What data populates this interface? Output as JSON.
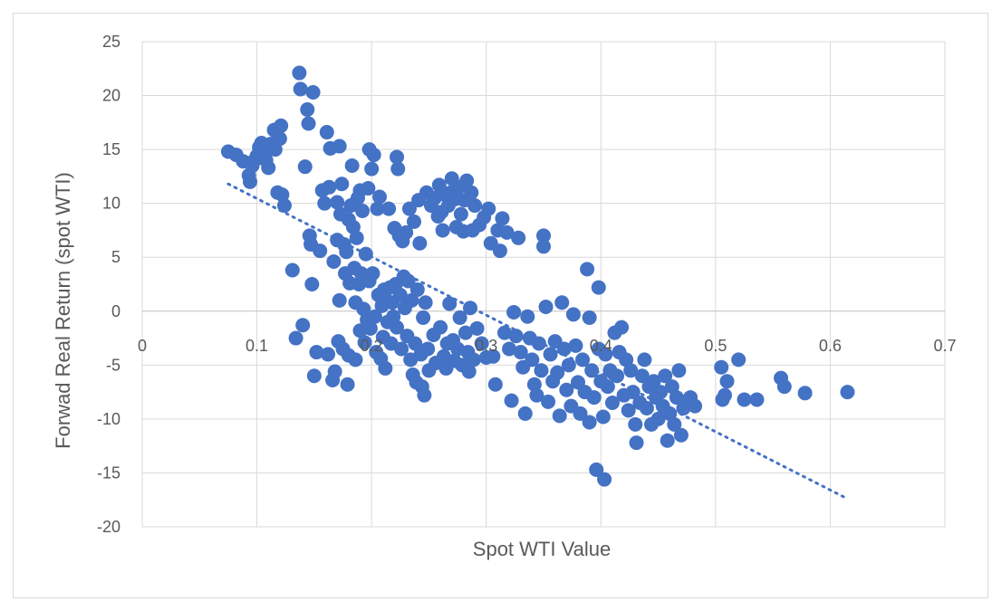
{
  "chart_data": {
    "type": "scatter",
    "title": "",
    "xlabel": "Spot WTI Value",
    "ylabel": "Forwad Real Return (spot WTI)",
    "xlim": [
      0,
      0.7
    ],
    "ylim": [
      -20,
      25
    ],
    "x_ticks": [
      "0",
      "0.1",
      "0.2",
      "0.3",
      "0.4",
      "0.5",
      "0.6",
      "0.7"
    ],
    "y_ticks": [
      "25",
      "20",
      "15",
      "10",
      "5",
      "0",
      "-5",
      "-10",
      "-15",
      "-20"
    ],
    "grid": true,
    "legend": "none",
    "marker_color": "#4472C4",
    "trendline": {
      "type": "linear",
      "style": "dotted",
      "color": "#4472C4",
      "x": [
        0.075,
        0.615
      ],
      "y": [
        11.8,
        -17.4
      ]
    },
    "points": [
      [
        0.075,
        14.8
      ],
      [
        0.082,
        14.5
      ],
      [
        0.088,
        13.9
      ],
      [
        0.093,
        12.6
      ],
      [
        0.094,
        12.0
      ],
      [
        0.096,
        13.5
      ],
      [
        0.098,
        14.0
      ],
      [
        0.1,
        14.4
      ],
      [
        0.102,
        15.2
      ],
      [
        0.104,
        15.6
      ],
      [
        0.106,
        14.9
      ],
      [
        0.108,
        14.0
      ],
      [
        0.11,
        13.3
      ],
      [
        0.112,
        15.5
      ],
      [
        0.115,
        16.8
      ],
      [
        0.116,
        15.0
      ],
      [
        0.118,
        11.0
      ],
      [
        0.12,
        16.0
      ],
      [
        0.121,
        17.2
      ],
      [
        0.122,
        10.8
      ],
      [
        0.124,
        9.8
      ],
      [
        0.131,
        3.8
      ],
      [
        0.134,
        -2.5
      ],
      [
        0.137,
        22.1
      ],
      [
        0.138,
        20.6
      ],
      [
        0.14,
        -1.3
      ],
      [
        0.142,
        13.4
      ],
      [
        0.144,
        18.7
      ],
      [
        0.145,
        17.4
      ],
      [
        0.146,
        7.0
      ],
      [
        0.147,
        6.2
      ],
      [
        0.148,
        2.5
      ],
      [
        0.149,
        20.3
      ],
      [
        0.15,
        -6.0
      ],
      [
        0.152,
        -3.8
      ],
      [
        0.155,
        5.6
      ],
      [
        0.157,
        11.2
      ],
      [
        0.159,
        10.0
      ],
      [
        0.161,
        16.6
      ],
      [
        0.162,
        -4.0
      ],
      [
        0.163,
        11.5
      ],
      [
        0.164,
        15.1
      ],
      [
        0.166,
        -6.4
      ],
      [
        0.167,
        4.6
      ],
      [
        0.168,
        -5.6
      ],
      [
        0.17,
        10.1
      ],
      [
        0.17,
        6.6
      ],
      [
        0.171,
        -2.8
      ],
      [
        0.172,
        15.3
      ],
      [
        0.172,
        1.0
      ],
      [
        0.173,
        9.0
      ],
      [
        0.174,
        11.8
      ],
      [
        0.175,
        -3.5
      ],
      [
        0.176,
        6.2
      ],
      [
        0.177,
        3.5
      ],
      [
        0.178,
        5.5
      ],
      [
        0.179,
        -6.8
      ],
      [
        0.18,
        8.5
      ],
      [
        0.18,
        -4.1
      ],
      [
        0.181,
        2.6
      ],
      [
        0.182,
        9.8
      ],
      [
        0.183,
        13.5
      ],
      [
        0.184,
        7.8
      ],
      [
        0.185,
        4.0
      ],
      [
        0.186,
        0.8
      ],
      [
        0.186,
        -4.5
      ],
      [
        0.187,
        6.8
      ],
      [
        0.188,
        10.5
      ],
      [
        0.189,
        2.5
      ],
      [
        0.19,
        11.2
      ],
      [
        0.19,
        -1.8
      ],
      [
        0.191,
        3.5
      ],
      [
        0.192,
        9.3
      ],
      [
        0.193,
        0.2
      ],
      [
        0.194,
        -2.9
      ],
      [
        0.195,
        5.3
      ],
      [
        0.196,
        -0.8
      ],
      [
        0.197,
        11.4
      ],
      [
        0.198,
        15.0
      ],
      [
        0.198,
        2.8
      ],
      [
        0.199,
        -1.6
      ],
      [
        0.2,
        13.2
      ],
      [
        0.201,
        3.5
      ],
      [
        0.202,
        14.5
      ],
      [
        0.203,
        -0.5
      ],
      [
        0.204,
        -3.8
      ],
      [
        0.205,
        9.5
      ],
      [
        0.206,
        1.5
      ],
      [
        0.207,
        10.6
      ],
      [
        0.208,
        -4.4
      ],
      [
        0.209,
        0.5
      ],
      [
        0.21,
        -2.4
      ],
      [
        0.211,
        2.0
      ],
      [
        0.212,
        -5.3
      ],
      [
        0.213,
        1.0
      ],
      [
        0.214,
        -1.0
      ],
      [
        0.215,
        9.5
      ],
      [
        0.216,
        2.2
      ],
      [
        0.217,
        -3.0
      ],
      [
        0.218,
        0.8
      ],
      [
        0.219,
        -0.5
      ],
      [
        0.22,
        7.7
      ],
      [
        0.221,
        2.5
      ],
      [
        0.222,
        14.3
      ],
      [
        0.222,
        -1.5
      ],
      [
        0.223,
        13.2
      ],
      [
        0.224,
        7.0
      ],
      [
        0.225,
        1.5
      ],
      [
        0.226,
        -3.5
      ],
      [
        0.227,
        6.5
      ],
      [
        0.228,
        3.2
      ],
      [
        0.229,
        0.3
      ],
      [
        0.23,
        7.3
      ],
      [
        0.231,
        -2.3
      ],
      [
        0.232,
        2.8
      ],
      [
        0.233,
        9.5
      ],
      [
        0.234,
        -4.5
      ],
      [
        0.235,
        1.0
      ],
      [
        0.236,
        -5.9
      ],
      [
        0.237,
        8.3
      ],
      [
        0.238,
        -3.0
      ],
      [
        0.239,
        -6.6
      ],
      [
        0.24,
        2.0
      ],
      [
        0.241,
        10.3
      ],
      [
        0.242,
        6.3
      ],
      [
        0.243,
        -4.0
      ],
      [
        0.244,
        -7.0
      ],
      [
        0.245,
        -0.6
      ],
      [
        0.246,
        -7.8
      ],
      [
        0.247,
        0.8
      ],
      [
        0.248,
        11.0
      ],
      [
        0.249,
        -3.5
      ],
      [
        0.25,
        -5.5
      ],
      [
        0.252,
        9.8
      ],
      [
        0.254,
        -2.2
      ],
      [
        0.255,
        10.5
      ],
      [
        0.256,
        -4.8
      ],
      [
        0.258,
        8.8
      ],
      [
        0.259,
        11.7
      ],
      [
        0.26,
        -1.5
      ],
      [
        0.261,
        9.2
      ],
      [
        0.262,
        7.5
      ],
      [
        0.263,
        -4.2
      ],
      [
        0.264,
        10.8
      ],
      [
        0.265,
        -5.3
      ],
      [
        0.266,
        -3.0
      ],
      [
        0.267,
        9.8
      ],
      [
        0.268,
        0.7
      ],
      [
        0.269,
        11.0
      ],
      [
        0.27,
        12.3
      ],
      [
        0.271,
        -2.7
      ],
      [
        0.272,
        -4.6
      ],
      [
        0.273,
        10.4
      ],
      [
        0.274,
        7.8
      ],
      [
        0.275,
        -3.5
      ],
      [
        0.276,
        11.5
      ],
      [
        0.277,
        -0.6
      ],
      [
        0.278,
        9.0
      ],
      [
        0.279,
        -5.0
      ],
      [
        0.28,
        7.4
      ],
      [
        0.281,
        10.3
      ],
      [
        0.282,
        -2.0
      ],
      [
        0.283,
        12.1
      ],
      [
        0.284,
        -3.8
      ],
      [
        0.285,
        -5.6
      ],
      [
        0.286,
        0.3
      ],
      [
        0.287,
        11.0
      ],
      [
        0.288,
        7.5
      ],
      [
        0.289,
        -4.5
      ],
      [
        0.29,
        9.8
      ],
      [
        0.292,
        -1.6
      ],
      [
        0.294,
        8.0
      ],
      [
        0.296,
        -3.0
      ],
      [
        0.298,
        8.7
      ],
      [
        0.3,
        -4.3
      ],
      [
        0.302,
        9.5
      ],
      [
        0.304,
        6.3
      ],
      [
        0.306,
        -4.2
      ],
      [
        0.308,
        -6.8
      ],
      [
        0.31,
        7.5
      ],
      [
        0.312,
        5.6
      ],
      [
        0.314,
        8.6
      ],
      [
        0.316,
        -2.0
      ],
      [
        0.318,
        7.3
      ],
      [
        0.32,
        -3.5
      ],
      [
        0.322,
        -8.3
      ],
      [
        0.324,
        -0.1
      ],
      [
        0.326,
        -2.3
      ],
      [
        0.328,
        6.8
      ],
      [
        0.33,
        -3.8
      ],
      [
        0.332,
        -5.2
      ],
      [
        0.334,
        -9.5
      ],
      [
        0.336,
        -0.5
      ],
      [
        0.338,
        -2.5
      ],
      [
        0.34,
        -4.5
      ],
      [
        0.342,
        -6.8
      ],
      [
        0.344,
        -7.8
      ],
      [
        0.346,
        -3.0
      ],
      [
        0.348,
        -5.5
      ],
      [
        0.35,
        7.0
      ],
      [
        0.35,
        6.0
      ],
      [
        0.352,
        0.4
      ],
      [
        0.354,
        -8.4
      ],
      [
        0.356,
        -4.0
      ],
      [
        0.358,
        -6.5
      ],
      [
        0.36,
        -2.8
      ],
      [
        0.362,
        -5.7
      ],
      [
        0.364,
        -9.7
      ],
      [
        0.366,
        0.8
      ],
      [
        0.368,
        -3.5
      ],
      [
        0.37,
        -7.3
      ],
      [
        0.372,
        -5.0
      ],
      [
        0.374,
        -8.8
      ],
      [
        0.376,
        -0.3
      ],
      [
        0.378,
        -3.2
      ],
      [
        0.38,
        -6.6
      ],
      [
        0.382,
        -9.5
      ],
      [
        0.384,
        -4.5
      ],
      [
        0.386,
        -7.5
      ],
      [
        0.388,
        3.9
      ],
      [
        0.39,
        -0.6
      ],
      [
        0.39,
        -10.3
      ],
      [
        0.392,
        -5.5
      ],
      [
        0.394,
        -8.0
      ],
      [
        0.396,
        -14.7
      ],
      [
        0.398,
        2.2
      ],
      [
        0.398,
        -3.5
      ],
      [
        0.4,
        -6.5
      ],
      [
        0.402,
        -9.8
      ],
      [
        0.403,
        -15.6
      ],
      [
        0.404,
        -4.0
      ],
      [
        0.406,
        -7.0
      ],
      [
        0.408,
        -5.5
      ],
      [
        0.41,
        -8.5
      ],
      [
        0.412,
        -2.0
      ],
      [
        0.414,
        -6.0
      ],
      [
        0.416,
        -3.8
      ],
      [
        0.418,
        -1.5
      ],
      [
        0.42,
        -7.8
      ],
      [
        0.422,
        -4.5
      ],
      [
        0.424,
        -9.2
      ],
      [
        0.426,
        -5.5
      ],
      [
        0.428,
        -7.5
      ],
      [
        0.43,
        -10.5
      ],
      [
        0.431,
        -12.2
      ],
      [
        0.434,
        -8.5
      ],
      [
        0.436,
        -6.0
      ],
      [
        0.438,
        -4.5
      ],
      [
        0.44,
        -9.0
      ],
      [
        0.442,
        -7.0
      ],
      [
        0.444,
        -10.5
      ],
      [
        0.446,
        -6.5
      ],
      [
        0.448,
        -8.0
      ],
      [
        0.45,
        -10.0
      ],
      [
        0.452,
        -7.5
      ],
      [
        0.454,
        -8.8
      ],
      [
        0.456,
        -6.0
      ],
      [
        0.458,
        -12.0
      ],
      [
        0.46,
        -9.5
      ],
      [
        0.462,
        -7.0
      ],
      [
        0.464,
        -10.5
      ],
      [
        0.466,
        -8.0
      ],
      [
        0.468,
        -5.5
      ],
      [
        0.47,
        -11.5
      ],
      [
        0.472,
        -9.0
      ],
      [
        0.475,
        -8.5
      ],
      [
        0.478,
        -8.0
      ],
      [
        0.482,
        -8.8
      ],
      [
        0.505,
        -5.2
      ],
      [
        0.506,
        -8.2
      ],
      [
        0.508,
        -7.8
      ],
      [
        0.51,
        -6.5
      ],
      [
        0.52,
        -4.5
      ],
      [
        0.525,
        -8.2
      ],
      [
        0.536,
        -8.2
      ],
      [
        0.557,
        -6.2
      ],
      [
        0.56,
        -7.0
      ],
      [
        0.578,
        -7.6
      ],
      [
        0.615,
        -7.5
      ]
    ]
  }
}
